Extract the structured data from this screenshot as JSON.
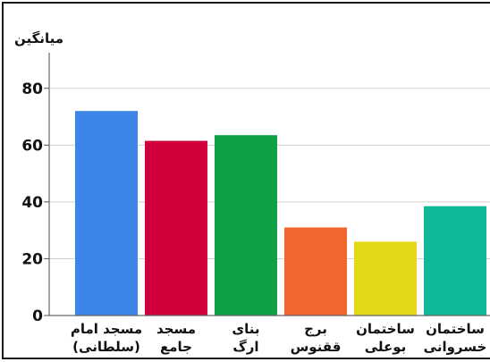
{
  "chart_data": {
    "type": "bar",
    "ylabel": "میانگین",
    "xlabel": "",
    "categories": [
      [
        "مسجد امام",
        "(سلطانی)"
      ],
      [
        "مسجد",
        "جامع"
      ],
      [
        "بنای",
        "ارگ"
      ],
      [
        "برج",
        "ققنوس"
      ],
      [
        "ساختمان",
        "بوعلی"
      ],
      [
        "ساختمان",
        "خسروانی"
      ]
    ],
    "values": [
      72,
      61.5,
      63.5,
      31,
      26,
      38.5
    ],
    "colors": [
      "#3d85e6",
      "#d1003a",
      "#10a045",
      "#f2652d",
      "#e4d818",
      "#10b89a"
    ],
    "ylim": [
      0,
      90
    ],
    "yticks": [
      0,
      20,
      40,
      60,
      80
    ],
    "grid": true
  }
}
